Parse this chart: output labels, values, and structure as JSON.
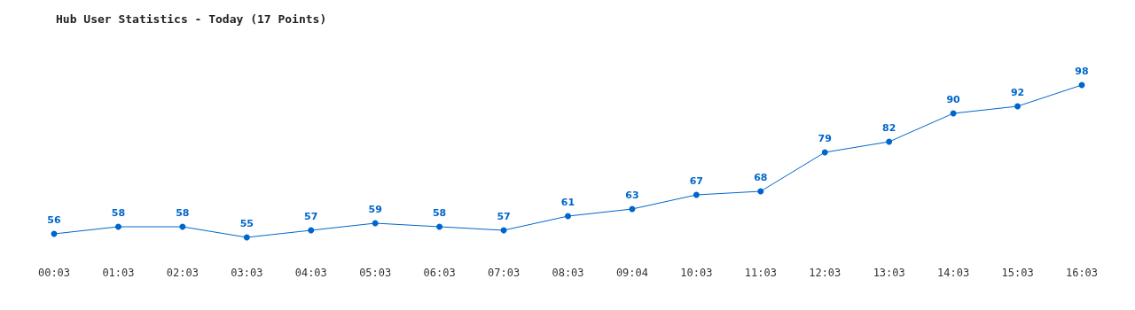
{
  "chart_data": {
    "type": "line",
    "title": "Hub User Statistics - Today (17 Points)",
    "categories": [
      "00:03",
      "01:03",
      "02:03",
      "03:03",
      "04:03",
      "05:03",
      "06:03",
      "07:03",
      "08:03",
      "09:04",
      "10:03",
      "11:03",
      "12:03",
      "13:03",
      "14:03",
      "15:03",
      "16:03"
    ],
    "series": [
      {
        "color": "#0066cc",
        "values": [
          56,
          58,
          58,
          55,
          57,
          59,
          58,
          57,
          61,
          63,
          67,
          68,
          79,
          82,
          90,
          92,
          98
        ]
      }
    ],
    "data_labels": true,
    "marker": "circle",
    "tick_labels": "x"
  }
}
